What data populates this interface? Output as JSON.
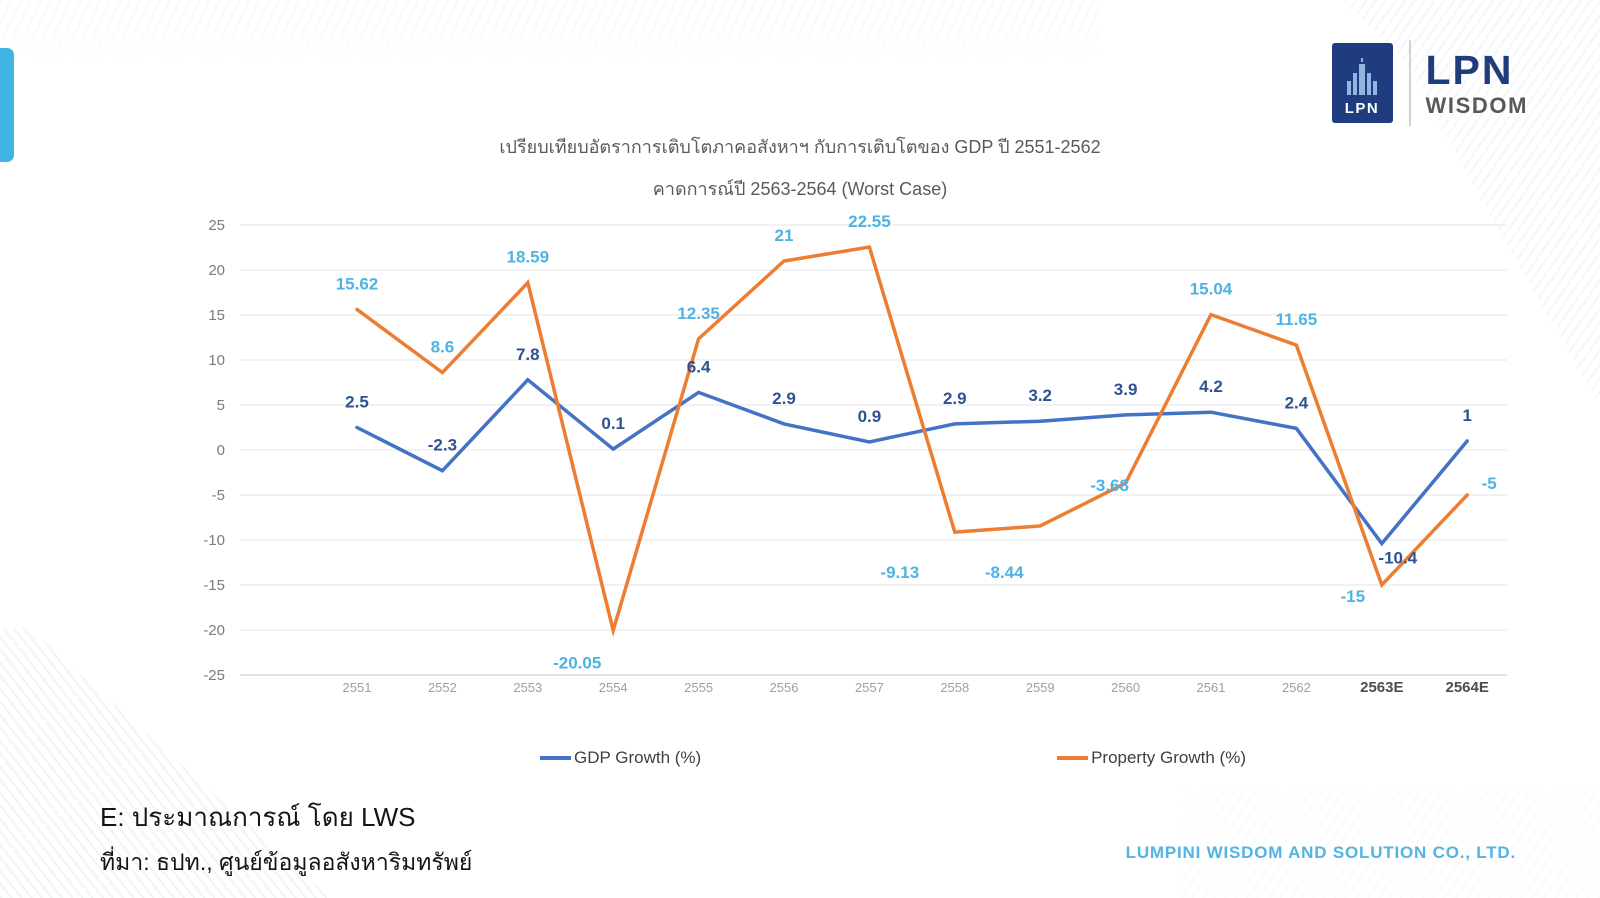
{
  "logo": {
    "badge_text": "LPN",
    "brand_line1": "LPN",
    "brand_line2": "WISDOM"
  },
  "title": {
    "line1": "เปรียบเทียบอัตราการเติบโตภาคอสังหาฯ กับการเติบโตของ GDP ปี 2551-2562",
    "line2": "คาดการณ์ปี 2563-2564 (Worst Case)"
  },
  "chart_data": {
    "type": "line",
    "categories": [
      "2551",
      "2552",
      "2553",
      "2554",
      "2555",
      "2556",
      "2557",
      "2558",
      "2559",
      "2560",
      "2561",
      "2562",
      "2563E",
      "2564E"
    ],
    "series": [
      {
        "name": "GDP Growth (%)",
        "color": "#4472C4",
        "label_color": "#2E5292",
        "values": [
          2.5,
          -2.3,
          7.8,
          0.1,
          6.4,
          2.9,
          0.9,
          2.9,
          3.2,
          3.9,
          4.2,
          2.4,
          -10.4,
          1
        ]
      },
      {
        "name": "Property Growth (%)",
        "color": "#ED7D31",
        "label_color": "#4EB3E3",
        "values": [
          15.62,
          8.6,
          18.59,
          -20.05,
          12.35,
          21,
          22.55,
          -9.13,
          -8.44,
          -3.68,
          15.04,
          11.65,
          -15,
          -5
        ]
      }
    ],
    "ylim": [
      -25,
      25
    ],
    "ytick_step": 5,
    "grid": true,
    "legend_position": "bottom"
  },
  "footer": {
    "note_line1": "E: ประมาณการณ์ โดย LWS",
    "note_line2": "ที่มา: ธปท., ศูนย์ข้อมูลอสังหาริมทรัพย์",
    "company": "LUMPINI WISDOM AND SOLUTION CO., LTD."
  },
  "colors": {
    "accent_bar": "#3FB4E5",
    "gdp_line": "#4472C4",
    "property_line": "#ED7D31",
    "gdp_label": "#2E5292",
    "property_label": "#4EB3E3",
    "company_text": "#53B3E3",
    "logo_navy": "#1E3C7E"
  }
}
